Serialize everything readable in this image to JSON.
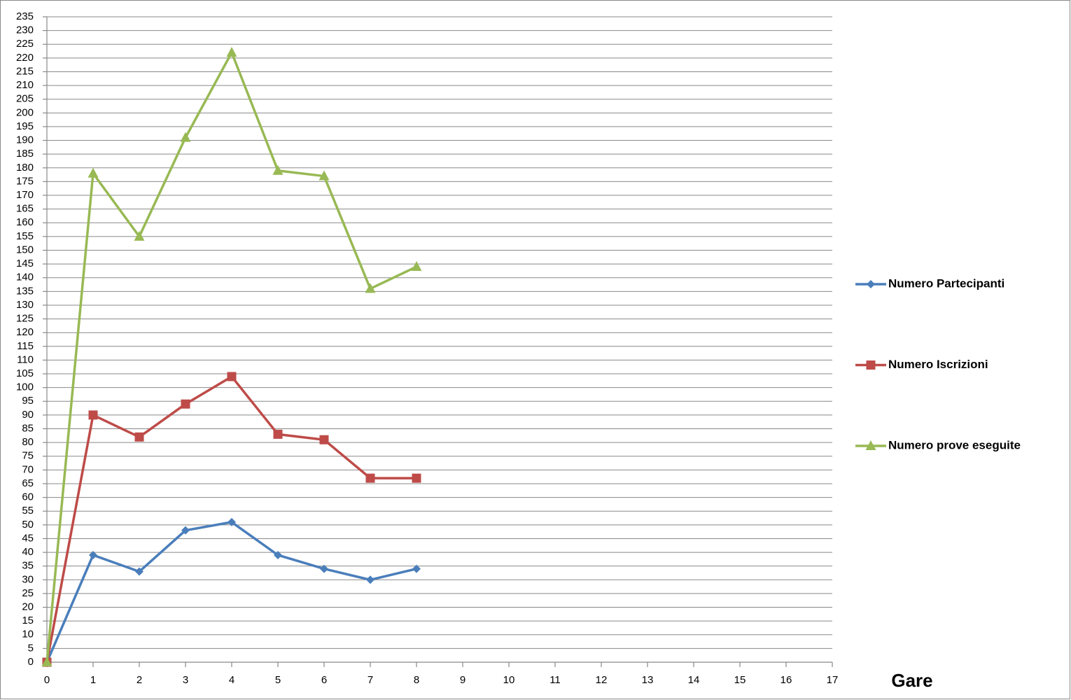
{
  "chart_data": {
    "type": "line",
    "x_label": "Gare",
    "x": [
      0,
      1,
      2,
      3,
      4,
      5,
      6,
      7,
      8
    ],
    "series": [
      {
        "name": "Numero Partecipanti",
        "color": "#4a7ebb",
        "marker": "diamond",
        "values": [
          0,
          39,
          33,
          48,
          51,
          39,
          34,
          30,
          34
        ]
      },
      {
        "name": "Numero Iscrizioni",
        "color": "#be4b48",
        "marker": "square",
        "values": [
          0,
          90,
          82,
          94,
          104,
          83,
          81,
          67,
          67
        ]
      },
      {
        "name": "Numero prove eseguite",
        "color": "#98b954",
        "marker": "triangle",
        "values": [
          0,
          178,
          155,
          191,
          222,
          179,
          177,
          136,
          144
        ]
      }
    ],
    "xlim": [
      0,
      17
    ],
    "xticks": [
      0,
      1,
      2,
      3,
      4,
      5,
      6,
      7,
      8,
      9,
      10,
      11,
      12,
      13,
      14,
      15,
      16,
      17
    ],
    "ylim": [
      0,
      235
    ],
    "yticks": [
      0,
      5,
      10,
      15,
      20,
      25,
      30,
      35,
      40,
      45,
      50,
      55,
      60,
      65,
      70,
      75,
      80,
      85,
      90,
      95,
      100,
      105,
      110,
      115,
      120,
      125,
      130,
      135,
      140,
      145,
      150,
      155,
      160,
      165,
      170,
      175,
      180,
      185,
      190,
      195,
      200,
      205,
      210,
      215,
      220,
      225,
      230,
      235
    ],
    "grid": true,
    "legend": "right"
  }
}
